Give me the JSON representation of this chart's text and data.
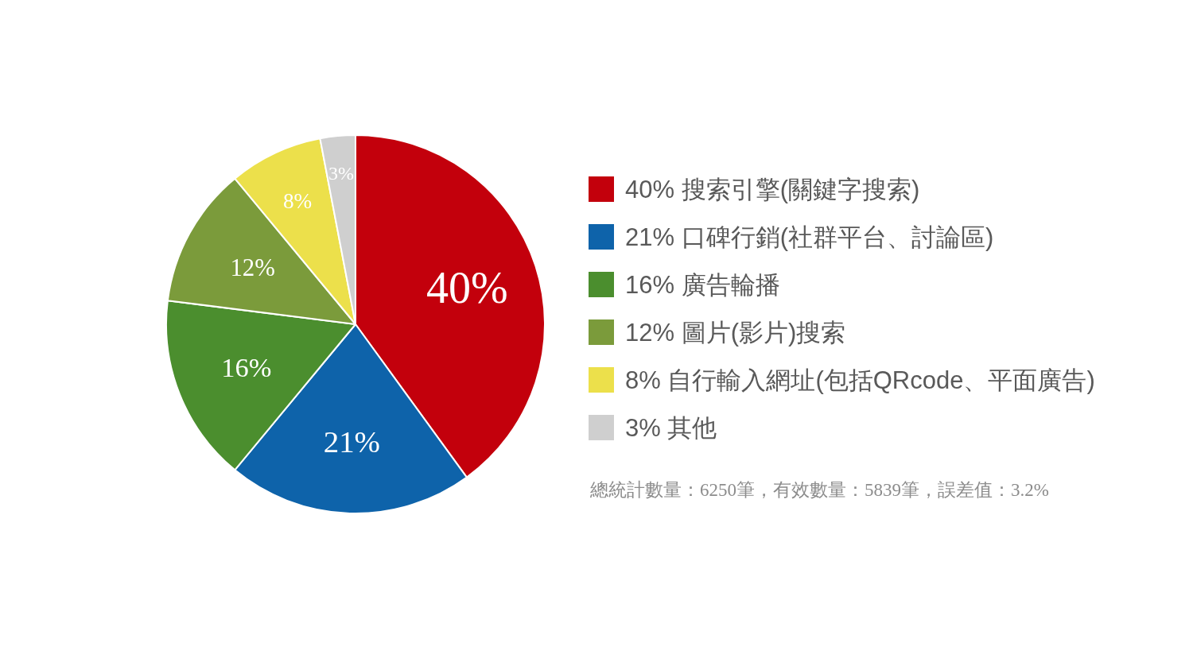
{
  "chart_data": {
    "type": "pie",
    "categories": [
      "40% 搜索引擎(關鍵字搜索)",
      "21% 口碑行銷(社群平台、討論區)",
      "16% 廣告輪播",
      "12% 圖片(影片)搜索",
      "8% 自行輸入網址(包括QRcode、平面廣告)",
      "3% 其他"
    ],
    "values": [
      40,
      21,
      16,
      12,
      8,
      3
    ],
    "colors": [
      "#c3000c",
      "#0e63aa",
      "#4b8e2e",
      "#7b9b3b",
      "#ece04b",
      "#cfcfcf"
    ],
    "value_labels": [
      "40%",
      "21%",
      "16%",
      "12%",
      "8%",
      "3%"
    ],
    "legend": "right",
    "annotations": [
      "總統計數量：6250筆，有效數量：5839筆，誤差值：3.2%"
    ]
  }
}
